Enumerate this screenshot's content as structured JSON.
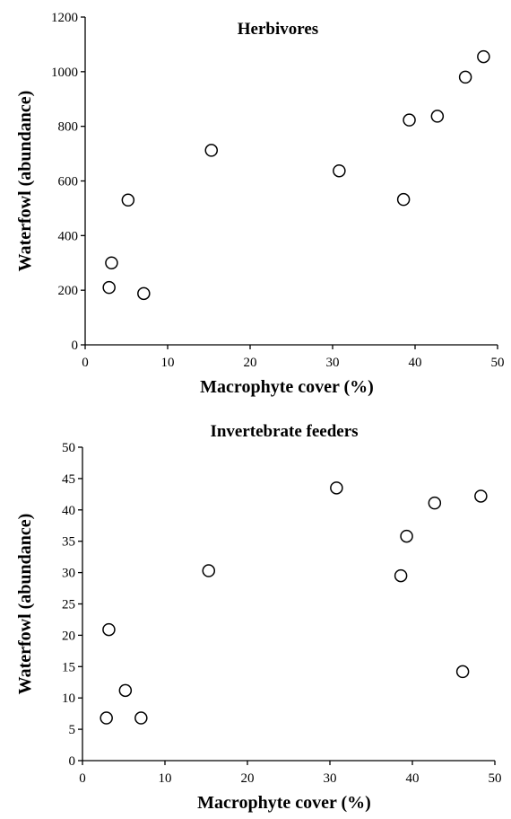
{
  "chart_data": [
    {
      "type": "scatter",
      "title": "Herbivores",
      "xlabel": "Macrophyte cover (%)",
      "ylabel": "Waterfowl (abundance)",
      "xlim": [
        0,
        50
      ],
      "ylim": [
        0,
        1200
      ],
      "xticks": [
        0,
        10,
        20,
        30,
        40,
        50
      ],
      "yticks": [
        0,
        200,
        400,
        600,
        800,
        1000,
        1200
      ],
      "grid": false,
      "points": [
        {
          "x": 2.9,
          "y": 210
        },
        {
          "x": 3.2,
          "y": 300
        },
        {
          "x": 5.2,
          "y": 530
        },
        {
          "x": 7.1,
          "y": 188
        },
        {
          "x": 15.3,
          "y": 712
        },
        {
          "x": 30.8,
          "y": 637
        },
        {
          "x": 38.6,
          "y": 532
        },
        {
          "x": 39.3,
          "y": 823
        },
        {
          "x": 42.7,
          "y": 837
        },
        {
          "x": 46.1,
          "y": 980
        },
        {
          "x": 48.3,
          "y": 1055
        }
      ]
    },
    {
      "type": "scatter",
      "title": "Invertebrate feeders",
      "xlabel": "Macrophyte cover (%)",
      "ylabel": "Waterfowl (abundance)",
      "xlim": [
        0,
        50
      ],
      "ylim": [
        0,
        50
      ],
      "xticks": [
        0,
        10,
        20,
        30,
        40,
        50
      ],
      "yticks": [
        0,
        5,
        10,
        15,
        20,
        25,
        30,
        35,
        40,
        45,
        50
      ],
      "grid": false,
      "points": [
        {
          "x": 2.9,
          "y": 6.8
        },
        {
          "x": 3.2,
          "y": 20.9
        },
        {
          "x": 5.2,
          "y": 11.2
        },
        {
          "x": 7.1,
          "y": 6.8
        },
        {
          "x": 15.3,
          "y": 30.3
        },
        {
          "x": 30.8,
          "y": 43.5
        },
        {
          "x": 38.6,
          "y": 29.5
        },
        {
          "x": 39.3,
          "y": 35.8
        },
        {
          "x": 42.7,
          "y": 41.1
        },
        {
          "x": 46.1,
          "y": 14.2
        },
        {
          "x": 48.3,
          "y": 42.2
        }
      ]
    }
  ]
}
